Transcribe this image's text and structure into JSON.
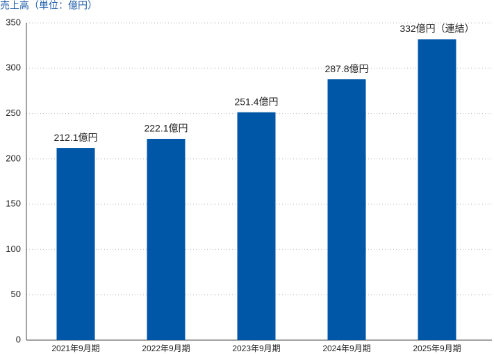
{
  "chart_data": {
    "type": "bar",
    "title": "売上高（単位：億円）",
    "categories": [
      "2021年9月期",
      "2022年9月期",
      "2023年9月期",
      "2024年9月期",
      "2025年9月期"
    ],
    "values": [
      212.1,
      222.1,
      251.4,
      287.8,
      332
    ],
    "value_labels": [
      "212.1億円",
      "222.1億円",
      "251.4億円",
      "287.8億円",
      "332億円（連結）"
    ],
    "color": "#0057a8",
    "ylim": [
      0,
      350
    ],
    "yticks": [
      0,
      50,
      100,
      150,
      200,
      250,
      300,
      350
    ],
    "grid": true
  }
}
